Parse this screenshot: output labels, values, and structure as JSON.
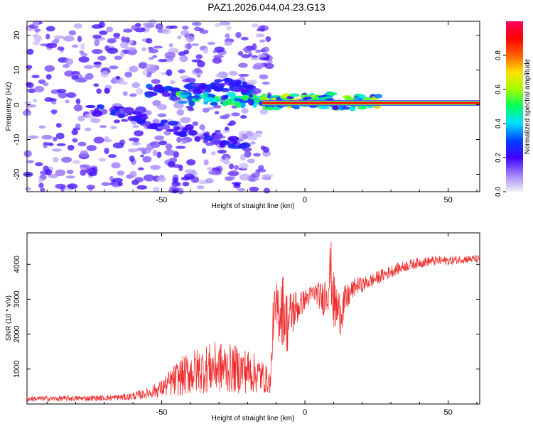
{
  "title": "PAZ1.2026.044.04.23.G13",
  "colors": {
    "snr_line": "#f03030",
    "bg_points": "#a070ff",
    "axis": "#000000"
  },
  "chart_data": [
    {
      "id": "spectrogram",
      "type": "heatmap",
      "title": "PAZ1.2026.044.04.23.G13",
      "xlabel": "Height of straight line (km)",
      "ylabel": "Frequency (Hz)",
      "xlim": [
        -97,
        61
      ],
      "ylim": [
        -25,
        24
      ],
      "xticks": [
        -50,
        0,
        50
      ],
      "yticks": [
        -20,
        -10,
        0,
        10,
        20
      ],
      "colorbar": {
        "label": "Normalized spectral amplitude",
        "range": [
          0,
          1
        ],
        "ticks": [
          "0.0",
          "0.2",
          "0.4",
          "0.6",
          "0.8"
        ],
        "tick_values": [
          0.0,
          0.2,
          0.4,
          0.6,
          0.8
        ],
        "colors": [
          "#f0f0f0",
          "#a080ff",
          "#4000ff",
          "#0040ff",
          "#00e0ff",
          "#00ff60",
          "#a0ff00",
          "#ffe000",
          "#ff6000",
          "#ff0000",
          "#ff0060"
        ]
      },
      "features": [
        {
          "name": "carrier line",
          "x_start": -15,
          "x_end": 61,
          "freq": 0.5,
          "amplitude": 0.95
        },
        {
          "name": "upper branch",
          "points": [
            [
              -55,
              4
            ],
            [
              -45,
              3
            ],
            [
              -35,
              5
            ],
            [
              -25,
              6
            ],
            [
              -18,
              4
            ]
          ],
          "amplitude": 0.3
        },
        {
          "name": "lower branch",
          "points": [
            [
              -75,
              -1
            ],
            [
              -60,
              -3
            ],
            [
              -50,
              -6
            ],
            [
              -40,
              -8
            ],
            [
              -30,
              -10
            ],
            [
              -20,
              -12
            ]
          ],
          "amplitude": 0.25
        },
        {
          "name": "bright spot",
          "points": [
            [
              -45,
              2
            ],
            [
              -10,
              1
            ],
            [
              5,
              1
            ],
            [
              10,
              2
            ]
          ],
          "amplitude": 0.5
        }
      ]
    },
    {
      "id": "snr",
      "type": "line",
      "title": "",
      "xlabel": "Height of straight line (km)",
      "ylabel": "SNR (10 * v/v)",
      "xlim": [
        -97,
        61
      ],
      "ylim": [
        0,
        4900
      ],
      "xticks": [
        -50,
        0,
        50
      ],
      "yticks": [
        1000,
        2000,
        3000,
        4000
      ],
      "series": [
        {
          "name": "SNR",
          "x": [
            -97,
            -90,
            -80,
            -70,
            -62,
            -55,
            -50,
            -45,
            -40,
            -35,
            -30,
            -25,
            -20,
            -15,
            -12,
            -11,
            -10,
            -8,
            -6,
            -4,
            -2,
            0,
            2,
            4,
            6,
            8,
            9,
            10,
            12,
            14,
            16,
            18,
            20,
            25,
            30,
            35,
            40,
            45,
            50,
            55,
            61
          ],
          "values": [
            150,
            150,
            160,
            170,
            200,
            300,
            450,
            700,
            900,
            1000,
            1050,
            1000,
            950,
            800,
            600,
            2500,
            2600,
            2800,
            2300,
            2700,
            2800,
            3000,
            3100,
            3200,
            3000,
            3300,
            3900,
            2900,
            2600,
            2900,
            3200,
            3400,
            3400,
            3600,
            3800,
            3950,
            4050,
            4100,
            4100,
            4150,
            4150
          ],
          "noise": [
            80,
            80,
            80,
            80,
            100,
            150,
            250,
            500,
            650,
            700,
            750,
            700,
            650,
            500,
            300,
            700,
            900,
            1100,
            900,
            700,
            400,
            300,
            300,
            300,
            500,
            700,
            900,
            900,
            700,
            500,
            300,
            250,
            220,
            200,
            180,
            160,
            150,
            140,
            130,
            120,
            110
          ]
        }
      ]
    }
  ]
}
